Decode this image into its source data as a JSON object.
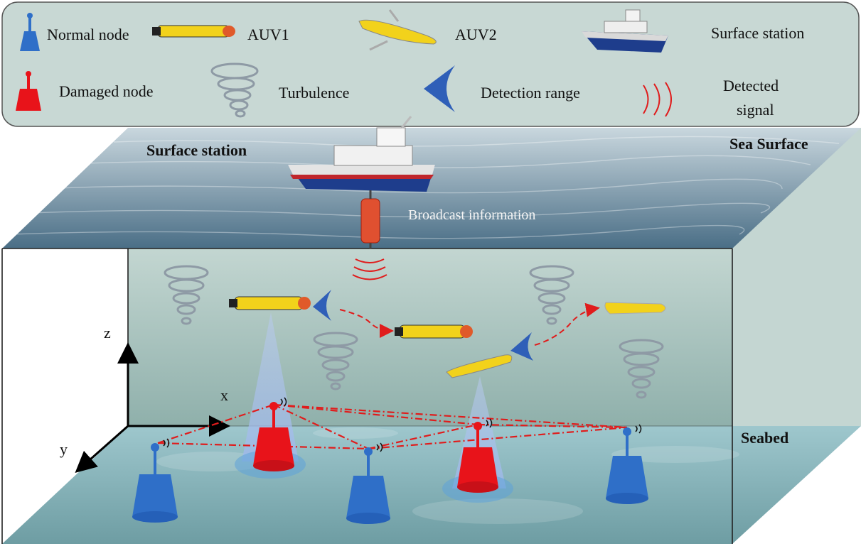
{
  "legend": {
    "normal_node": "Normal node",
    "auv1": "AUV1",
    "auv2": "AUV2",
    "surface_station": "Surface station",
    "damaged_node": "Damaged node",
    "turbulence": "Turbulence",
    "detection_range": "Detection range",
    "detected_signal_line1": "Detected",
    "detected_signal_line2": "signal"
  },
  "scene": {
    "surface_station": "Surface station",
    "sea_surface": "Sea Surface",
    "broadcast": "Broadcast information",
    "seabed": "Seabed"
  },
  "axes": {
    "z": "z",
    "x": "x",
    "y": "y"
  },
  "colors": {
    "normal_node": "#2f6fc8",
    "damaged_node": "#e8131a",
    "auv_yellow": "#f2d21b",
    "path_red": "#e01c1c",
    "water": "#b9cdc8",
    "legend_bg": "#c8d8d4"
  }
}
